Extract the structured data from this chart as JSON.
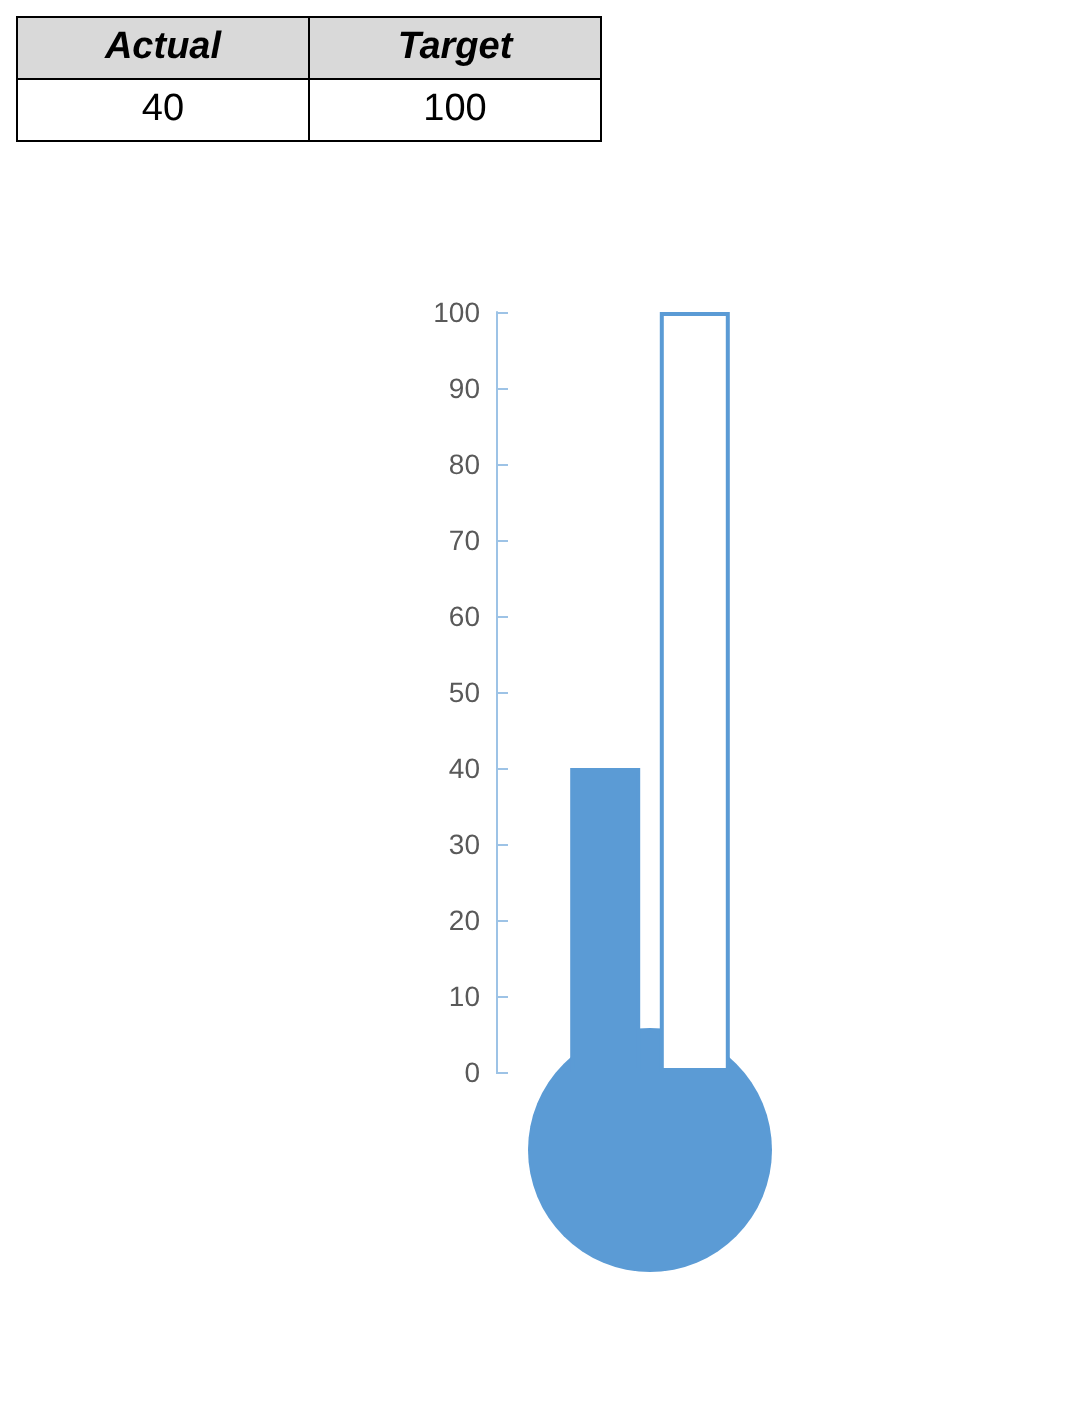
{
  "chart_data": {
    "type": "bar",
    "categories": [
      null
    ],
    "series": [
      {
        "color": "#5b9bd5",
        "values": [
          40
        ]
      },
      {
        "color": "#ffffff",
        "values": [
          100
        ]
      }
    ],
    "ylim": [
      0,
      100
    ],
    "yticks": [
      0,
      10,
      20,
      30,
      40,
      50,
      60,
      70,
      80,
      90,
      100
    ],
    "tick_labels": "y",
    "grid": false,
    "annotations": [
      "Actual",
      "Target",
      "40",
      "100"
    ]
  }
}
